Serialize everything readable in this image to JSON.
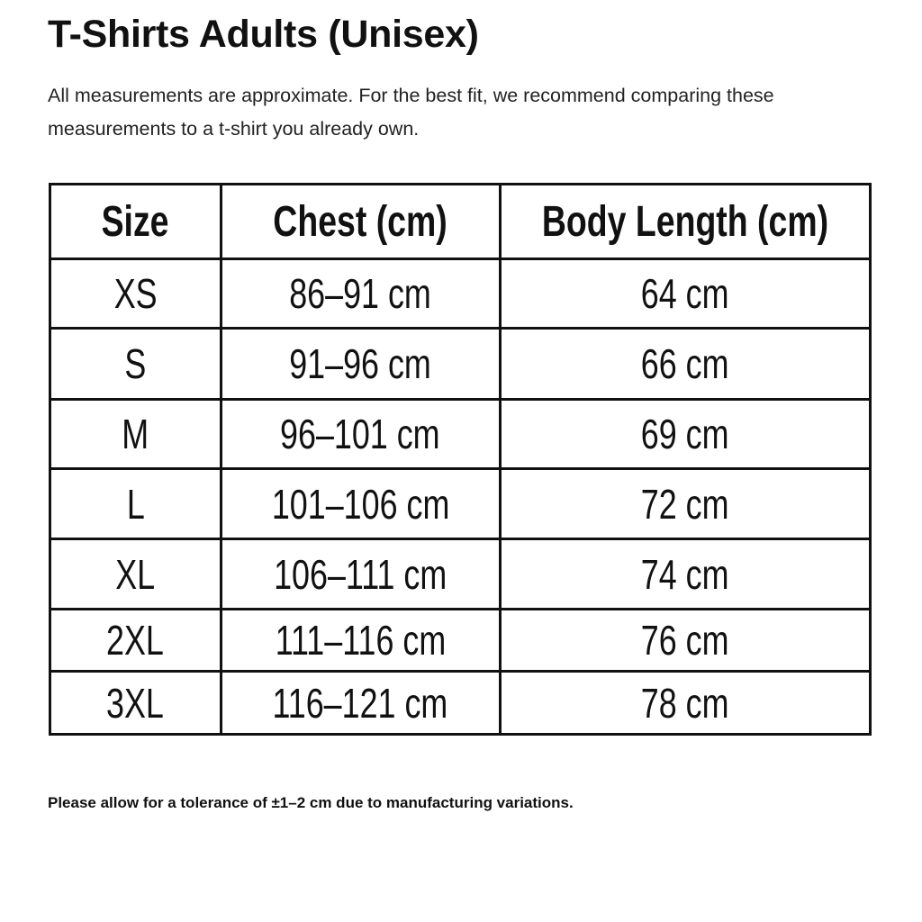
{
  "title": "T-Shirts Adults (Unisex)",
  "intro": "All measurements are approximate. For the best fit, we recommend comparing these measurements to a t-shirt you already own.",
  "table": {
    "headers": [
      "Size",
      "Chest (cm)",
      "Body Length (cm)"
    ],
    "rows": [
      [
        "XS",
        "86–91 cm",
        "64 cm"
      ],
      [
        "S",
        "91–96 cm",
        "66 cm"
      ],
      [
        "M",
        "96–101 cm",
        "69 cm"
      ],
      [
        "L",
        "101–106 cm",
        "72 cm"
      ],
      [
        "XL",
        "106–111 cm",
        "74 cm"
      ],
      [
        "2XL",
        "111–116 cm",
        "76 cm"
      ],
      [
        "3XL",
        "116–121 cm",
        "78 cm"
      ]
    ]
  },
  "footer": "Please allow for a tolerance of ±1–2 cm due to manufacturing variations."
}
